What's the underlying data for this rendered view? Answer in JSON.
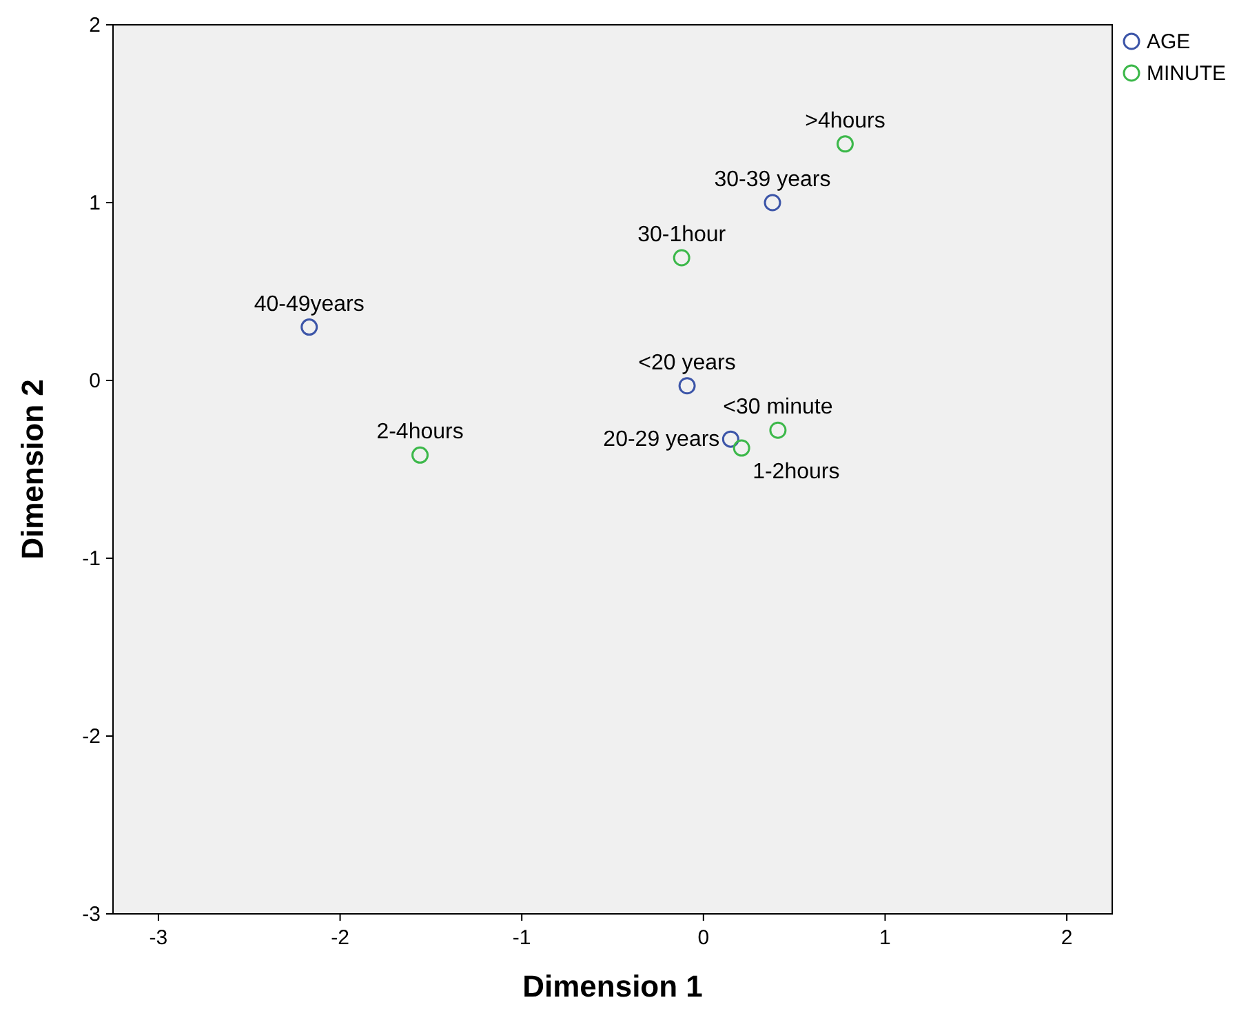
{
  "chart_data": {
    "type": "scatter",
    "xlabel": "Dimension 1",
    "ylabel": "Dimension 2",
    "xlim": [
      -3.25,
      2.25
    ],
    "xticks": [
      -3,
      -2,
      -1,
      0,
      1,
      2
    ],
    "ylim": [
      -3,
      2
    ],
    "yticks": [
      -3,
      -2,
      -1,
      0,
      1,
      2
    ],
    "grid": false,
    "legend": "top right",
    "marker": "circle",
    "series": [
      {
        "name": "AGE",
        "color": "#3c55a8",
        "x": [
          -2.17,
          0.38,
          -0.09,
          0.15
        ],
        "values": [
          0.3,
          1.0,
          -0.03,
          -0.33
        ]
      },
      {
        "name": "MINUTE",
        "color": "#3cb84a",
        "x": [
          0.78,
          -0.12,
          -1.56,
          0.41,
          0.21
        ],
        "values": [
          1.33,
          0.69,
          -0.42,
          -0.28,
          -0.38
        ]
      }
    ],
    "annotations": [
      {
        "text": "40-49years",
        "x": -2.17,
        "y": 0.3
      },
      {
        "text": "30-39 years",
        "x": 0.38,
        "y": 1.0
      },
      {
        "text": "<20 years",
        "x": -0.09,
        "y": -0.03
      },
      {
        "text": ">4hours",
        "x": 0.78,
        "y": 1.33
      },
      {
        "text": "30-1hour",
        "x": -0.12,
        "y": 0.69
      },
      {
        "text": "2-4hours",
        "x": -1.56,
        "y": -0.42
      },
      {
        "text": "<30 minute",
        "x": 0.41,
        "y": -0.28
      },
      {
        "text": "20-29 years",
        "x": 0.15,
        "y": -0.33
      },
      {
        "text": "1-2hours",
        "x": 0.21,
        "y": -0.38
      }
    ]
  }
}
